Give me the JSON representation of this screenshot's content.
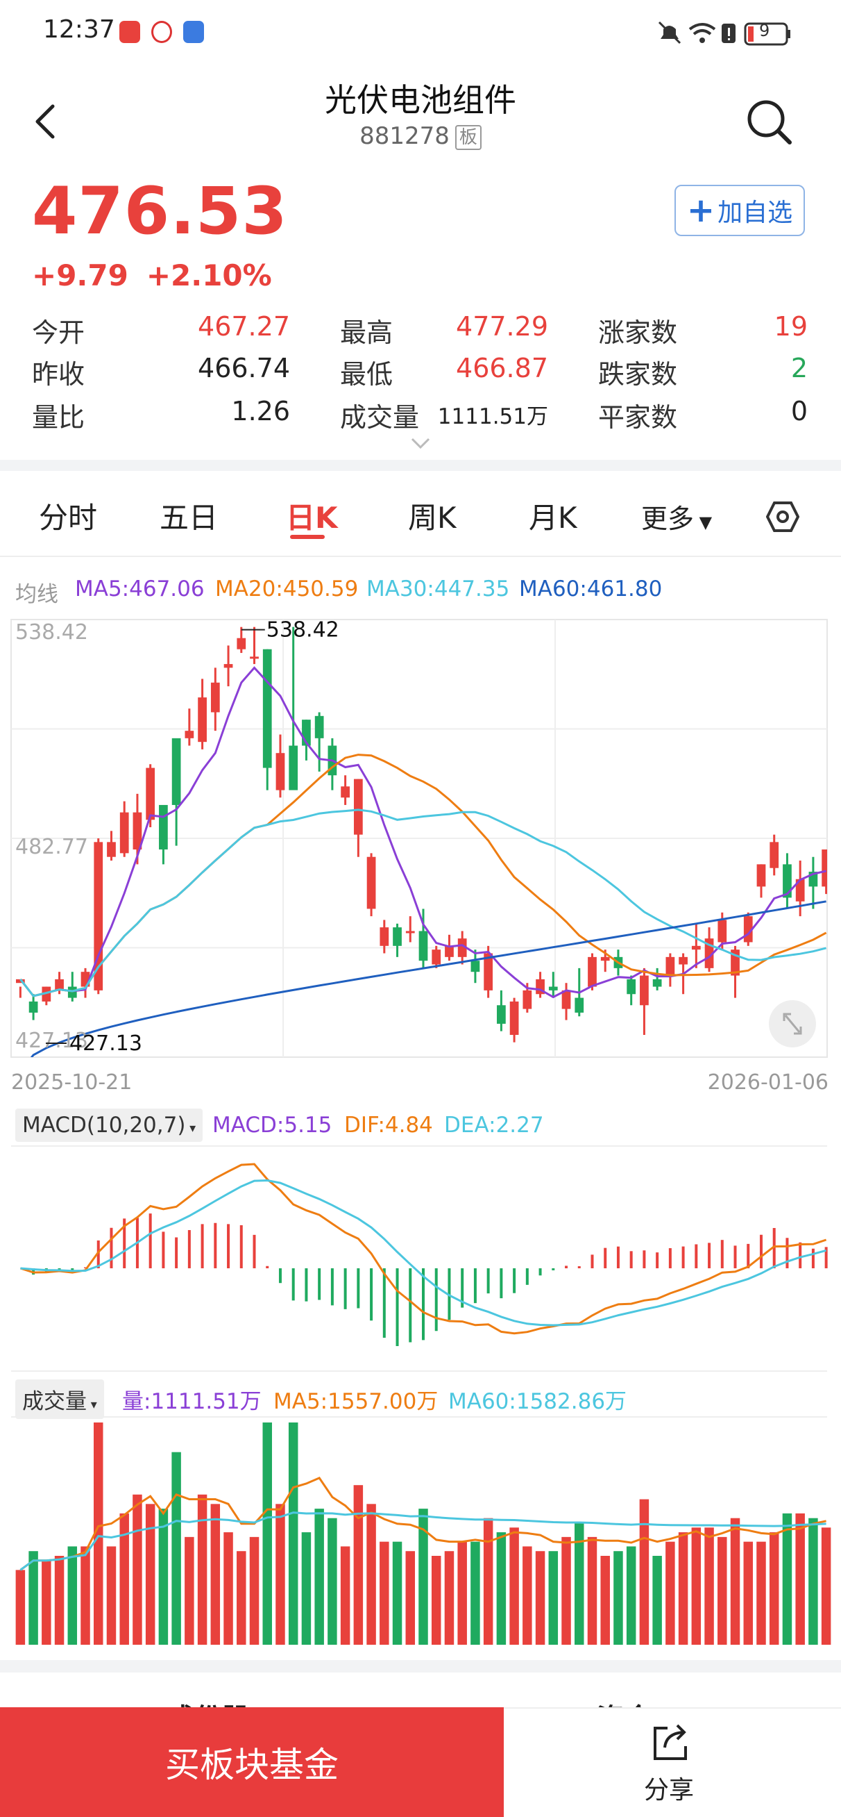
{
  "status_bar": {
    "time": "12:37",
    "battery": "9"
  },
  "header": {
    "title": "光伏电池组件",
    "code": "881278",
    "tag": "板"
  },
  "quote": {
    "price": "476.53",
    "change": "+9.79",
    "change_pct": "+2.10%",
    "watch_label": "加自选",
    "stats": [
      {
        "label": "今开",
        "value": "467.27",
        "color": "red"
      },
      {
        "label": "最高",
        "value": "477.29",
        "color": "red"
      },
      {
        "label": "涨家数",
        "value": "19",
        "color": "red"
      },
      {
        "label": "昨收",
        "value": "466.74",
        "color": "black"
      },
      {
        "label": "最低",
        "value": "466.87",
        "color": "red"
      },
      {
        "label": "跌家数",
        "value": "2",
        "color": "green"
      },
      {
        "label": "量比",
        "value": "1.26",
        "color": "black"
      },
      {
        "label": "成交量",
        "value": "1111.51万",
        "color": "black"
      },
      {
        "label": "平家数",
        "value": "0",
        "color": "black"
      }
    ]
  },
  "tabs": [
    "分时",
    "五日",
    "日K",
    "周K",
    "月K",
    "更多"
  ],
  "ma_legend": {
    "label": "均线",
    "ma5": "MA5:467.06",
    "ma20": "MA20:450.59",
    "ma30": "MA30:447.35",
    "ma60": "MA60:461.80"
  },
  "colors": {
    "up": "#e8413c",
    "down": "#1faa5f",
    "ma5": "#8a3fd6",
    "ma20": "#ee7d12",
    "ma30": "#4cc6df",
    "ma60": "#1f5fbf"
  },
  "chart_data": [
    {
      "type": "candlestick",
      "x_start": "2025-10-21",
      "x_end": "2026-01-06",
      "y_labels": [
        "538.42",
        "482.77",
        "427.13"
      ],
      "max_mark": "538.42",
      "min_mark": "427.13",
      "ylim": [
        422,
        540
      ],
      "candles": [
        [
          442,
          443,
          441,
          438
        ],
        [
          437,
          434,
          439,
          432
        ],
        [
          437,
          441,
          441,
          436
        ],
        [
          440,
          443,
          445,
          439
        ],
        [
          441,
          438,
          445,
          437
        ],
        [
          441,
          445,
          446,
          438
        ],
        [
          440,
          480,
          481,
          439
        ],
        [
          476,
          480,
          483,
          475
        ],
        [
          477,
          488,
          491,
          476
        ],
        [
          478,
          488,
          493,
          474
        ],
        [
          486,
          500,
          501,
          484
        ],
        [
          490,
          478,
          490,
          474
        ],
        [
          508,
          490,
          507,
          479
        ],
        [
          508,
          510,
          516,
          506
        ],
        [
          507,
          519,
          524,
          505
        ],
        [
          515,
          523,
          527,
          510
        ],
        [
          527,
          528,
          533,
          522
        ],
        [
          532,
          535,
          538,
          531
        ],
        [
          530,
          530,
          538,
          528
        ],
        [
          532,
          500,
          532,
          494
        ],
        [
          494,
          504,
          509,
          492
        ],
        [
          506,
          494,
          538,
          503
        ],
        [
          513,
          506,
          513,
          502
        ],
        [
          514,
          508,
          515,
          499
        ],
        [
          506,
          498,
          508,
          494
        ],
        [
          492,
          495,
          498,
          490
        ],
        [
          482,
          497,
          497,
          476
        ],
        [
          462,
          476,
          477,
          460
        ],
        [
          452,
          457,
          459,
          450
        ],
        [
          457,
          452,
          458,
          449
        ],
        [
          456,
          456,
          460,
          453
        ],
        [
          456,
          448,
          462,
          446
        ],
        [
          447,
          451,
          452,
          446
        ],
        [
          449,
          452,
          455,
          448
        ],
        [
          449,
          454,
          456,
          447
        ],
        [
          448,
          445,
          451,
          442
        ],
        [
          440,
          450,
          452,
          438
        ],
        [
          436,
          431,
          440,
          429
        ],
        [
          428,
          437,
          438,
          426
        ],
        [
          435,
          440,
          442,
          434
        ],
        [
          439,
          443,
          445,
          438
        ],
        [
          441,
          440,
          445,
          438
        ],
        [
          435,
          440,
          442,
          432
        ],
        [
          438,
          434,
          446,
          433
        ],
        [
          441,
          449,
          450,
          440
        ],
        [
          448,
          449,
          451,
          445
        ],
        [
          449,
          446,
          451,
          444
        ],
        [
          443,
          439,
          444,
          436
        ],
        [
          436,
          444,
          446,
          428
        ],
        [
          443,
          441,
          446,
          440
        ],
        [
          444,
          449,
          450,
          441
        ],
        [
          447,
          449,
          450,
          439
        ],
        [
          451,
          452,
          458,
          446
        ],
        [
          446,
          454,
          457,
          445
        ],
        [
          453,
          459,
          461,
          451
        ],
        [
          444,
          451,
          452,
          438
        ],
        [
          453,
          460,
          461,
          452
        ],
        [
          468,
          474,
          474,
          465
        ],
        [
          473,
          480,
          482,
          471
        ],
        [
          474,
          465,
          477,
          462
        ],
        [
          464,
          470,
          475,
          460
        ],
        [
          472,
          468,
          476,
          462
        ],
        [
          468,
          478,
          478,
          466
        ]
      ]
    },
    {
      "type": "macd",
      "label": "MACD(10,20,7)",
      "macd": "MACD:5.15",
      "dif": "DIF:4.84",
      "dea": "DEA:2.27"
    },
    {
      "type": "volume",
      "label": "成交量",
      "vol": "量:1111.51万",
      "ma5": "MA5:1557.00万",
      "ma60": "MA60:1582.86万"
    }
  ],
  "bottom": {
    "buy_label": "买板块基金",
    "share_label": "分享",
    "peek_left": "成份股",
    "peek_right": "资金"
  }
}
